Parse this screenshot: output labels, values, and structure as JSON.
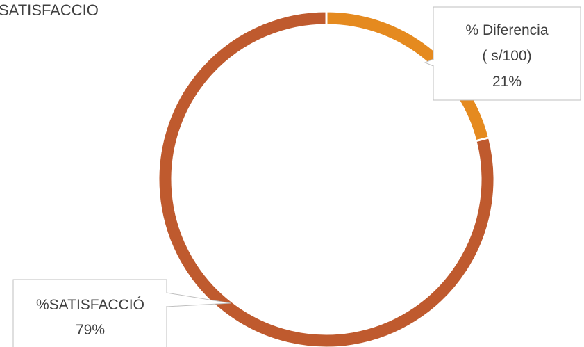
{
  "chart_data": {
    "type": "pie",
    "variant": "doughnut",
    "title": "SATISFACCIÓ",
    "title_visible": "SATISFACCIO",
    "slices": [
      {
        "name": "% Diferencia ( s/100)",
        "label_lines": [
          "% Diferencia",
          "( s/100)"
        ],
        "value": 21,
        "display": "21%",
        "color": "#E58A1F"
      },
      {
        "name": "%SATISFACCIÓ",
        "label_lines": [
          "%SATISFACCIÓ"
        ],
        "value": 79,
        "display": "79%",
        "color": "#BF5A2E"
      }
    ],
    "legend": "none",
    "data_labels": "callouts"
  }
}
